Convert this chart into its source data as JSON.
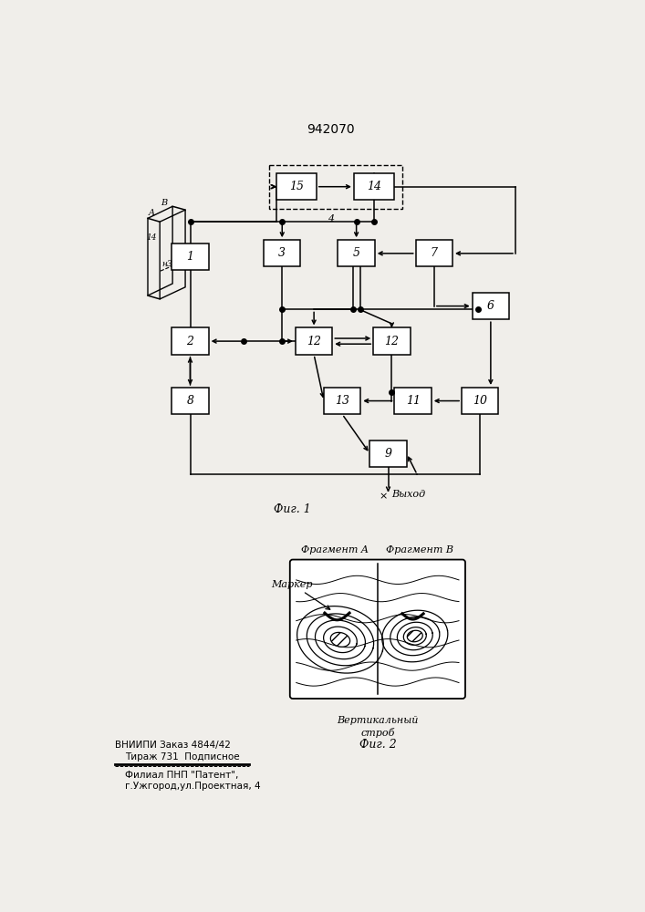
{
  "title": "942070",
  "fig1_label": "Фиг. 1",
  "fig2_label": "Фиг. 2",
  "fragment_a_label": "Фрагмент A",
  "fragment_b_label": "Фрагмент B",
  "marker_label": "Маркер",
  "strob_label": "Вертикальный\nстроб",
  "bottom_text_line1": "ВНИИПИ Заказ 4844/42",
  "bottom_text_line2": "Тираж 731  Подписное",
  "bottom_text_line3": "Филиал ПНП \"Патент\",",
  "bottom_text_line4": "г.Ужгород,ул.Проектная, 4",
  "bg_color": "#f0eeea"
}
